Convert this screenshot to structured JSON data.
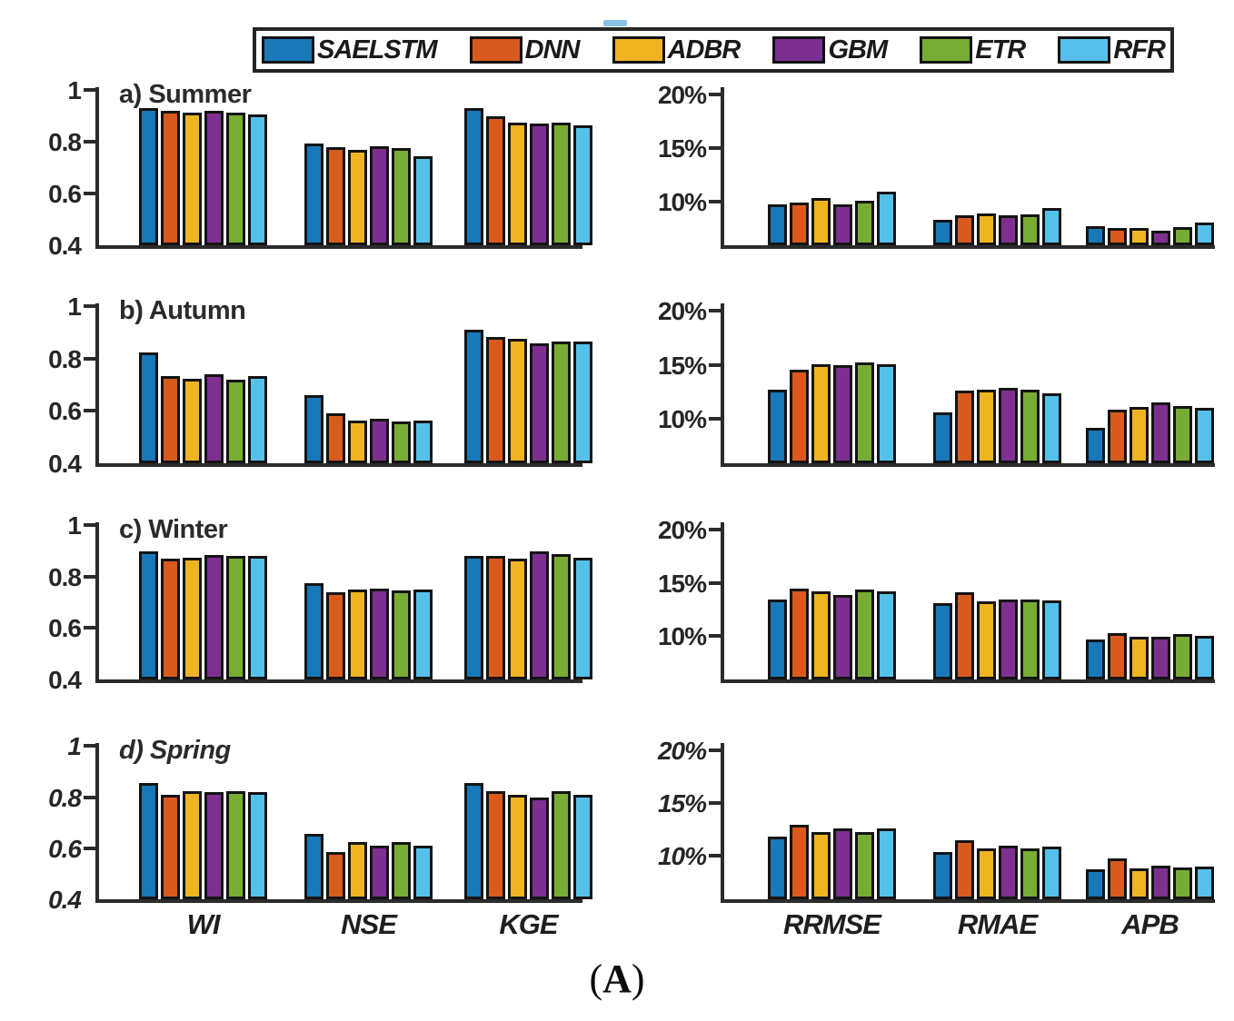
{
  "figure": {
    "caption": "(A)",
    "colors": {
      "axis": "#2b2b2b",
      "bar_outline": "#141414",
      "legend_border": "#262626",
      "background": "#ffffff"
    }
  },
  "legend": {
    "items": [
      {
        "label": "SAELSTM",
        "color": "#1878b8"
      },
      {
        "label": "DNN",
        "color": "#d95a1d"
      },
      {
        "label": "ADBR",
        "color": "#eeb422"
      },
      {
        "label": "GBM",
        "color": "#7d3090"
      },
      {
        "label": "ETR",
        "color": "#77ad32"
      },
      {
        "label": "RFR",
        "color": "#55c1ea"
      }
    ]
  },
  "bottom_axis_labels": {
    "left": [
      "WI",
      "NSE",
      "KGE"
    ],
    "right": [
      "RRMSE",
      "RMAE",
      "APB"
    ]
  },
  "chart_data": [
    {
      "id": "summer-left",
      "row": "a",
      "side": "left",
      "type": "bar",
      "title": "a) Summer",
      "italic": false,
      "categories": [
        "WI",
        "NSE",
        "KGE"
      ],
      "ylim": [
        0.4,
        1.0
      ],
      "yticks": [
        1,
        0.8,
        0.6,
        0.4
      ],
      "ytick_labels": [
        "1",
        "0.8",
        "0.6",
        "0.4"
      ],
      "series": [
        {
          "name": "SAELSTM",
          "values": [
            0.93,
            0.795,
            0.93
          ]
        },
        {
          "name": "DNN",
          "values": [
            0.92,
            0.78,
            0.9
          ]
        },
        {
          "name": "ADBR",
          "values": [
            0.915,
            0.77,
            0.875
          ]
        },
        {
          "name": "GBM",
          "values": [
            0.92,
            0.785,
            0.87
          ]
        },
        {
          "name": "ETR",
          "values": [
            0.915,
            0.775,
            0.875
          ]
        },
        {
          "name": "RFR",
          "values": [
            0.905,
            0.745,
            0.865
          ]
        }
      ]
    },
    {
      "id": "summer-right",
      "row": "a",
      "side": "right",
      "type": "bar",
      "title": "",
      "italic": false,
      "categories": [
        "RRMSE",
        "RMAE",
        "APB"
      ],
      "ylim": [
        5.9,
        20
      ],
      "yticks": [
        20,
        15,
        10
      ],
      "ytick_labels": [
        "20%",
        "15%",
        "10%"
      ],
      "series": [
        {
          "name": "SAELSTM",
          "values": [
            9.7,
            8.3,
            7.7
          ]
        },
        {
          "name": "DNN",
          "values": [
            9.9,
            8.7,
            7.5
          ]
        },
        {
          "name": "ADBR",
          "values": [
            10.3,
            8.9,
            7.5
          ]
        },
        {
          "name": "GBM",
          "values": [
            9.7,
            8.7,
            7.3
          ]
        },
        {
          "name": "ETR",
          "values": [
            10.1,
            8.8,
            7.6
          ]
        },
        {
          "name": "RFR",
          "values": [
            10.9,
            9.4,
            8.0
          ]
        }
      ]
    },
    {
      "id": "autumn-left",
      "row": "b",
      "side": "left",
      "type": "bar",
      "title": "b) Autumn",
      "italic": false,
      "categories": [
        "WI",
        "NSE",
        "KGE"
      ],
      "ylim": [
        0.4,
        1.0
      ],
      "yticks": [
        1,
        0.8,
        0.6,
        0.4
      ],
      "ytick_labels": [
        "1",
        "0.8",
        "0.6",
        "0.4"
      ],
      "series": [
        {
          "name": "SAELSTM",
          "values": [
            0.825,
            0.66,
            0.91
          ]
        },
        {
          "name": "DNN",
          "values": [
            0.735,
            0.59,
            0.885
          ]
        },
        {
          "name": "ADBR",
          "values": [
            0.725,
            0.565,
            0.875
          ]
        },
        {
          "name": "GBM",
          "values": [
            0.74,
            0.57,
            0.86
          ]
        },
        {
          "name": "ETR",
          "values": [
            0.72,
            0.56,
            0.865
          ]
        },
        {
          "name": "RFR",
          "values": [
            0.735,
            0.565,
            0.865
          ]
        }
      ]
    },
    {
      "id": "autumn-right",
      "row": "b",
      "side": "right",
      "type": "bar",
      "title": "",
      "italic": false,
      "categories": [
        "RRMSE",
        "RMAE",
        "APB"
      ],
      "ylim": [
        5.9,
        20
      ],
      "yticks": [
        20,
        15,
        10
      ],
      "ytick_labels": [
        "20%",
        "15%",
        "10%"
      ],
      "series": [
        {
          "name": "SAELSTM",
          "values": [
            12.7,
            10.6,
            9.2
          ]
        },
        {
          "name": "DNN",
          "values": [
            14.6,
            12.6,
            10.9
          ]
        },
        {
          "name": "ADBR",
          "values": [
            15.1,
            12.7,
            11.1
          ]
        },
        {
          "name": "GBM",
          "values": [
            15.0,
            12.9,
            11.5
          ]
        },
        {
          "name": "ETR",
          "values": [
            15.2,
            12.7,
            11.2
          ]
        },
        {
          "name": "RFR",
          "values": [
            15.1,
            12.4,
            11.0
          ]
        }
      ]
    },
    {
      "id": "winter-left",
      "row": "c",
      "side": "left",
      "type": "bar",
      "title": "c) Winter",
      "italic": false,
      "categories": [
        "WI",
        "NSE",
        "KGE"
      ],
      "ylim": [
        0.4,
        1.0
      ],
      "yticks": [
        1,
        0.8,
        0.6,
        0.4
      ],
      "ytick_labels": [
        "1",
        "0.8",
        "0.6",
        "0.4"
      ],
      "series": [
        {
          "name": "SAELSTM",
          "values": [
            0.9,
            0.775,
            0.88
          ]
        },
        {
          "name": "DNN",
          "values": [
            0.87,
            0.74,
            0.88
          ]
        },
        {
          "name": "ADBR",
          "values": [
            0.875,
            0.75,
            0.87
          ]
        },
        {
          "name": "GBM",
          "values": [
            0.885,
            0.755,
            0.9
          ]
        },
        {
          "name": "ETR",
          "values": [
            0.88,
            0.745,
            0.89
          ]
        },
        {
          "name": "RFR",
          "values": [
            0.88,
            0.75,
            0.875
          ]
        }
      ]
    },
    {
      "id": "winter-right",
      "row": "c",
      "side": "right",
      "type": "bar",
      "title": "",
      "italic": false,
      "categories": [
        "RRMSE",
        "RMAE",
        "APB"
      ],
      "ylim": [
        5.9,
        20
      ],
      "yticks": [
        20,
        15,
        10
      ],
      "ytick_labels": [
        "20%",
        "15%",
        "10%"
      ],
      "series": [
        {
          "name": "SAELSTM",
          "values": [
            13.4,
            13.1,
            9.7
          ]
        },
        {
          "name": "DNN",
          "values": [
            14.5,
            14.1,
            10.3
          ]
        },
        {
          "name": "ADBR",
          "values": [
            14.2,
            13.3,
            9.9
          ]
        },
        {
          "name": "GBM",
          "values": [
            13.9,
            13.4,
            9.9
          ]
        },
        {
          "name": "ETR",
          "values": [
            14.4,
            13.45,
            10.2
          ]
        },
        {
          "name": "RFR",
          "values": [
            14.2,
            13.35,
            10.0
          ]
        }
      ]
    },
    {
      "id": "spring-left",
      "row": "d",
      "side": "left",
      "type": "bar",
      "title": "d) Spring",
      "italic": true,
      "categories": [
        "WI",
        "NSE",
        "KGE"
      ],
      "ylim": [
        0.4,
        1.0
      ],
      "yticks": [
        1,
        0.8,
        0.6,
        0.4
      ],
      "ytick_labels": [
        "1",
        "0.8",
        "0.6",
        "0.4"
      ],
      "series": [
        {
          "name": "SAELSTM",
          "values": [
            0.855,
            0.655,
            0.855
          ]
        },
        {
          "name": "DNN",
          "values": [
            0.81,
            0.585,
            0.825
          ]
        },
        {
          "name": "ADBR",
          "values": [
            0.825,
            0.625,
            0.81
          ]
        },
        {
          "name": "GBM",
          "values": [
            0.82,
            0.61,
            0.8
          ]
        },
        {
          "name": "ETR",
          "values": [
            0.825,
            0.625,
            0.825
          ]
        },
        {
          "name": "RFR",
          "values": [
            0.82,
            0.61,
            0.81
          ]
        }
      ]
    },
    {
      "id": "spring-right",
      "row": "d",
      "side": "right",
      "type": "bar",
      "title": "",
      "italic": true,
      "categories": [
        "RRMSE",
        "RMAE",
        "APB"
      ],
      "ylim": [
        5.9,
        20
      ],
      "yticks": [
        20,
        15,
        10
      ],
      "ytick_labels": [
        "20%",
        "15%",
        "10%"
      ],
      "series": [
        {
          "name": "SAELSTM",
          "values": [
            11.8,
            10.4,
            8.7
          ]
        },
        {
          "name": "DNN",
          "values": [
            13.0,
            11.5,
            9.8
          ]
        },
        {
          "name": "ADBR",
          "values": [
            12.3,
            10.7,
            8.8
          ]
        },
        {
          "name": "GBM",
          "values": [
            12.6,
            11.0,
            9.1
          ]
        },
        {
          "name": "ETR",
          "values": [
            12.3,
            10.7,
            8.9
          ]
        },
        {
          "name": "RFR",
          "values": [
            12.6,
            10.9,
            9.0
          ]
        }
      ]
    }
  ]
}
